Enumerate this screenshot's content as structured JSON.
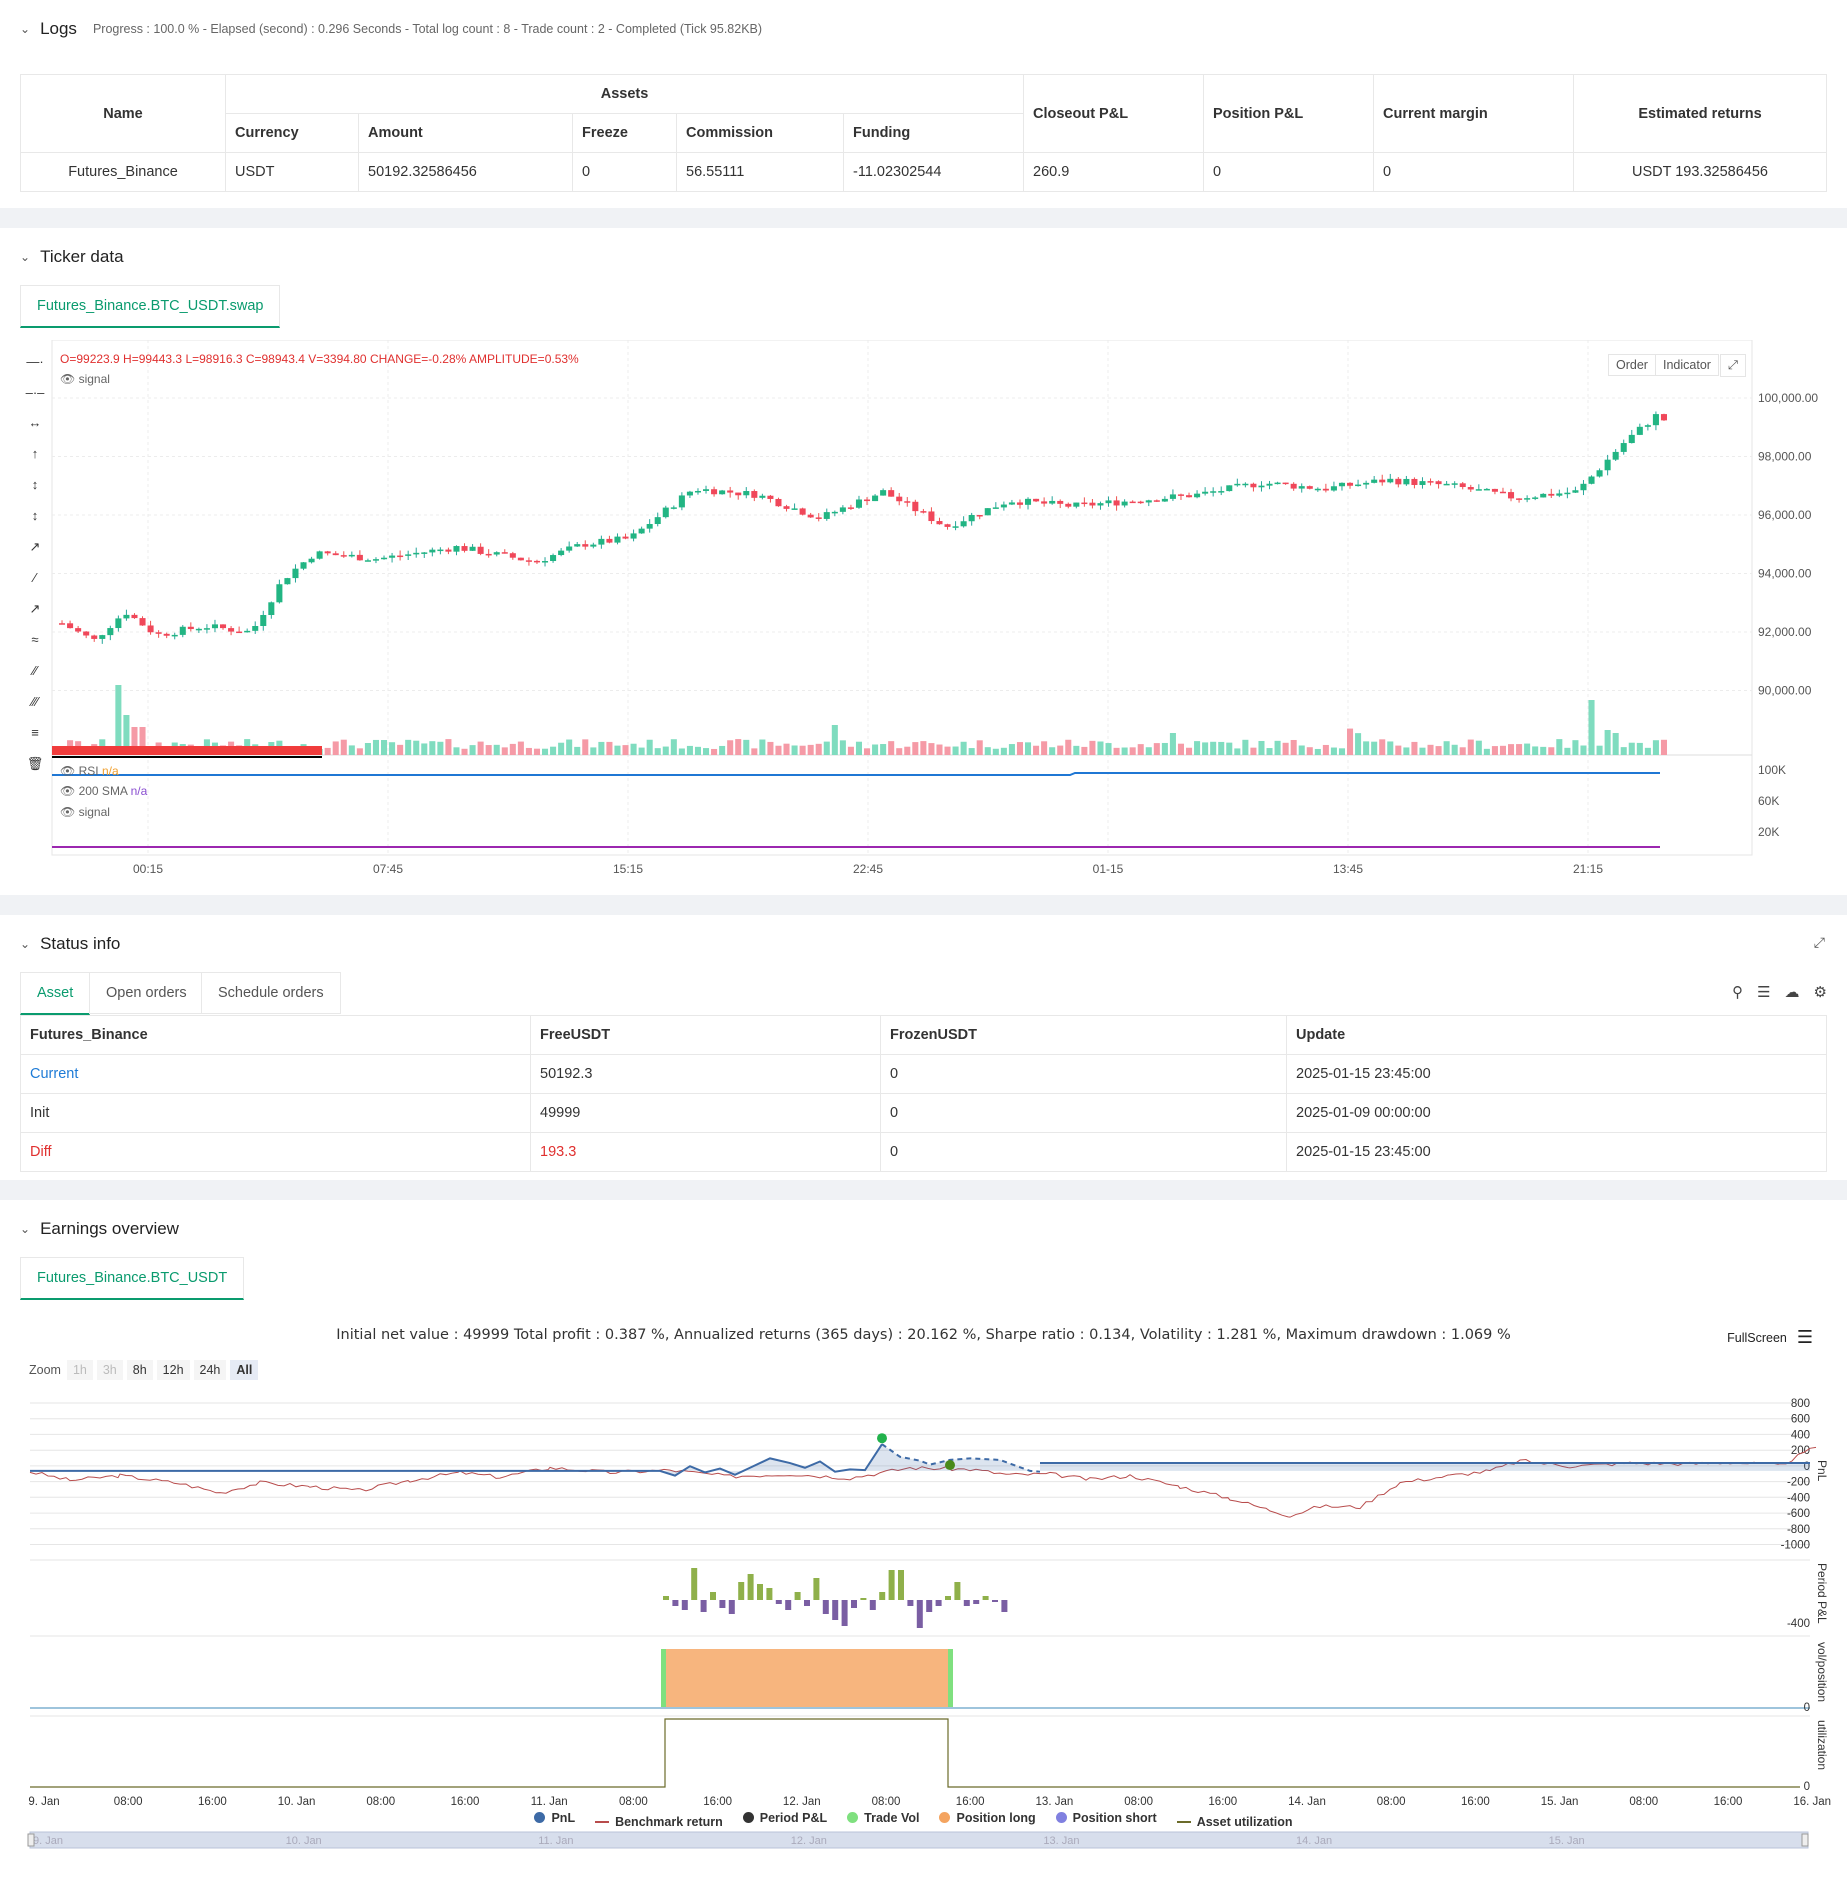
{
  "logs": {
    "title": "Logs",
    "summary": "Progress : 100.0 % - Elapsed (second) : 0.296  Seconds - Total log count : 8 - Trade count : 2 - Completed (Tick 95.82KB)",
    "headers": {
      "name": "Name",
      "assets": "Assets",
      "currency": "Currency",
      "amount": "Amount",
      "freeze": "Freeze",
      "commission": "Commission",
      "funding": "Funding",
      "closeout": "Closeout P&L",
      "position": "Position P&L",
      "margin": "Current margin",
      "returns": "Estimated returns"
    },
    "row": {
      "name": "Futures_Binance",
      "currency": "USDT",
      "amount": "50192.32586456",
      "freeze": "0",
      "commission": "56.55111",
      "funding": "-11.02302544",
      "closeout": "260.9",
      "position": "0",
      "margin": "0",
      "returns": "USDT 193.32586456"
    }
  },
  "ticker": {
    "title": "Ticker data",
    "tab": "Futures_Binance.BTC_USDT.swap",
    "ohlc": "O=99223.9 H=99443.3 L=98916.3 C=98943.4 V=3394.80 CHANGE=",
    "change": "-0.28%",
    "amp_label": " AMPLITUDE=",
    "amplitude": "0.53%",
    "signal": "signal",
    "rsi": "RSI",
    "rsi_val": "n/a",
    "sma": "200 SMA",
    "sma_val": "n/a",
    "signal2": "signal",
    "btn_order": "Order",
    "btn_indicator": "Indicator",
    "y_labels": [
      "100,000.00",
      "98,000.00",
      "96,000.00",
      "94,000.00",
      "92,000.00",
      "90,000.00"
    ],
    "vol_labels": [
      "100K",
      "60K",
      "20K"
    ],
    "x_labels": [
      "00:15",
      "07:45",
      "15:15",
      "22:45",
      "01-15",
      "13:45",
      "21:15"
    ]
  },
  "status": {
    "title": "Status info",
    "tabs": [
      "Asset",
      "Open orders",
      "Schedule orders"
    ],
    "headers": [
      "Futures_Binance",
      "FreeUSDT",
      "FrozenUSDT",
      "Update"
    ],
    "rows": [
      [
        "Current",
        "50192.3",
        "0",
        "2025-01-15 23:45:00"
      ],
      [
        "Init",
        "49999",
        "0",
        "2025-01-09 00:00:00"
      ],
      [
        "Diff",
        "193.3",
        "0",
        "2025-01-15 23:45:00"
      ]
    ]
  },
  "earnings": {
    "title": "Earnings overview",
    "tab": "Futures_Binance.BTC_USDT",
    "summary": "Initial net value : 49999 Total profit : 0.387 %, Annualized returns (365 days) : 20.162 %, Sharpe ratio : 0.134, Volatility : 1.281 %, Maximum drawdown : 1.069 %",
    "fullscreen": "FullScreen",
    "zoom_label": "Zoom",
    "zoom": [
      "1h",
      "3h",
      "8h",
      "12h",
      "24h",
      "All"
    ],
    "pnl_ticks": [
      "800",
      "600",
      "400",
      "200",
      "0",
      "-200",
      "-400",
      "-600",
      "-800",
      "-1000"
    ],
    "pnl_axis": "PnL",
    "period_axis": "Period P&L",
    "period_tick": "-400",
    "vol_axis": "vol/position",
    "vol_tick": "0",
    "util_axis": "utilization",
    "util_tick": "0",
    "x_labels": [
      "9. Jan",
      "08:00",
      "16:00",
      "10. Jan",
      "08:00",
      "16:00",
      "11. Jan",
      "08:00",
      "16:00",
      "12. Jan",
      "08:00",
      "16:00",
      "13. Jan",
      "08:00",
      "16:00",
      "14. Jan",
      "08:00",
      "16:00",
      "15. Jan",
      "08:00",
      "16:00",
      "16. Jan"
    ],
    "nav_labels": [
      "9. Jan",
      "10. Jan",
      "11. Jan",
      "12. Jan",
      "13. Jan",
      "14. Jan",
      "15. Jan"
    ],
    "legend": [
      {
        "label": "PnL",
        "color": "#3d6aa6",
        "kind": "dot"
      },
      {
        "label": "Benchmark return",
        "color": "#b84c4c",
        "kind": "line"
      },
      {
        "label": "Period P&L",
        "color": "#333333",
        "kind": "dot"
      },
      {
        "label": "Trade Vol",
        "color": "#7fe07f",
        "kind": "dot"
      },
      {
        "label": "Position long",
        "color": "#f4a460",
        "kind": "dot"
      },
      {
        "label": "Position short",
        "color": "#8080e0",
        "kind": "dot"
      },
      {
        "label": "Asset utilization",
        "color": "#6b6b2a",
        "kind": "line"
      }
    ]
  },
  "colors": {
    "up": "#26a69a",
    "down": "#ef5350",
    "accent": "#0a9b6e"
  }
}
